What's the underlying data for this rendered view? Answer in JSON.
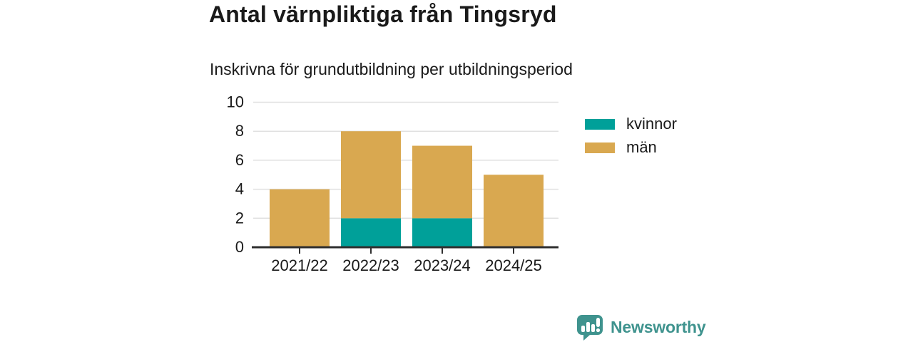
{
  "title": "Antal värnpliktiga från Tingsryd",
  "subtitle": "Inskrivna för grundutbildning per utbildningsperiod",
  "chart_data": {
    "type": "bar",
    "stacked": true,
    "title": "Antal värnpliktiga från Tingsryd",
    "subtitle": "Inskrivna för grundutbildning per utbildningsperiod",
    "categories": [
      "2021/22",
      "2022/23",
      "2023/24",
      "2024/25"
    ],
    "series": [
      {
        "name": "kvinnor",
        "color": "#00a099",
        "values": [
          0,
          2,
          2,
          0
        ]
      },
      {
        "name": "män",
        "color": "#d9a850",
        "values": [
          4,
          6,
          5,
          5
        ]
      }
    ],
    "totals": [
      4,
      8,
      7,
      5
    ],
    "ylim": [
      0,
      10
    ],
    "yticks": [
      0,
      2,
      4,
      6,
      8,
      10
    ],
    "grid": true,
    "legend_position": "right",
    "xlabel": "",
    "ylabel": ""
  },
  "colors": {
    "kvinnor": "#00a099",
    "man": "#d9a850",
    "text": "#1a1a1a",
    "gridline": "#e0e0e0",
    "axis": "#2f2f2f",
    "brand": "#3f938e"
  },
  "branding": {
    "logo_text": "Newsworthy",
    "logo_icon": "newsworthy-speech-bubble-barchart-icon"
  }
}
